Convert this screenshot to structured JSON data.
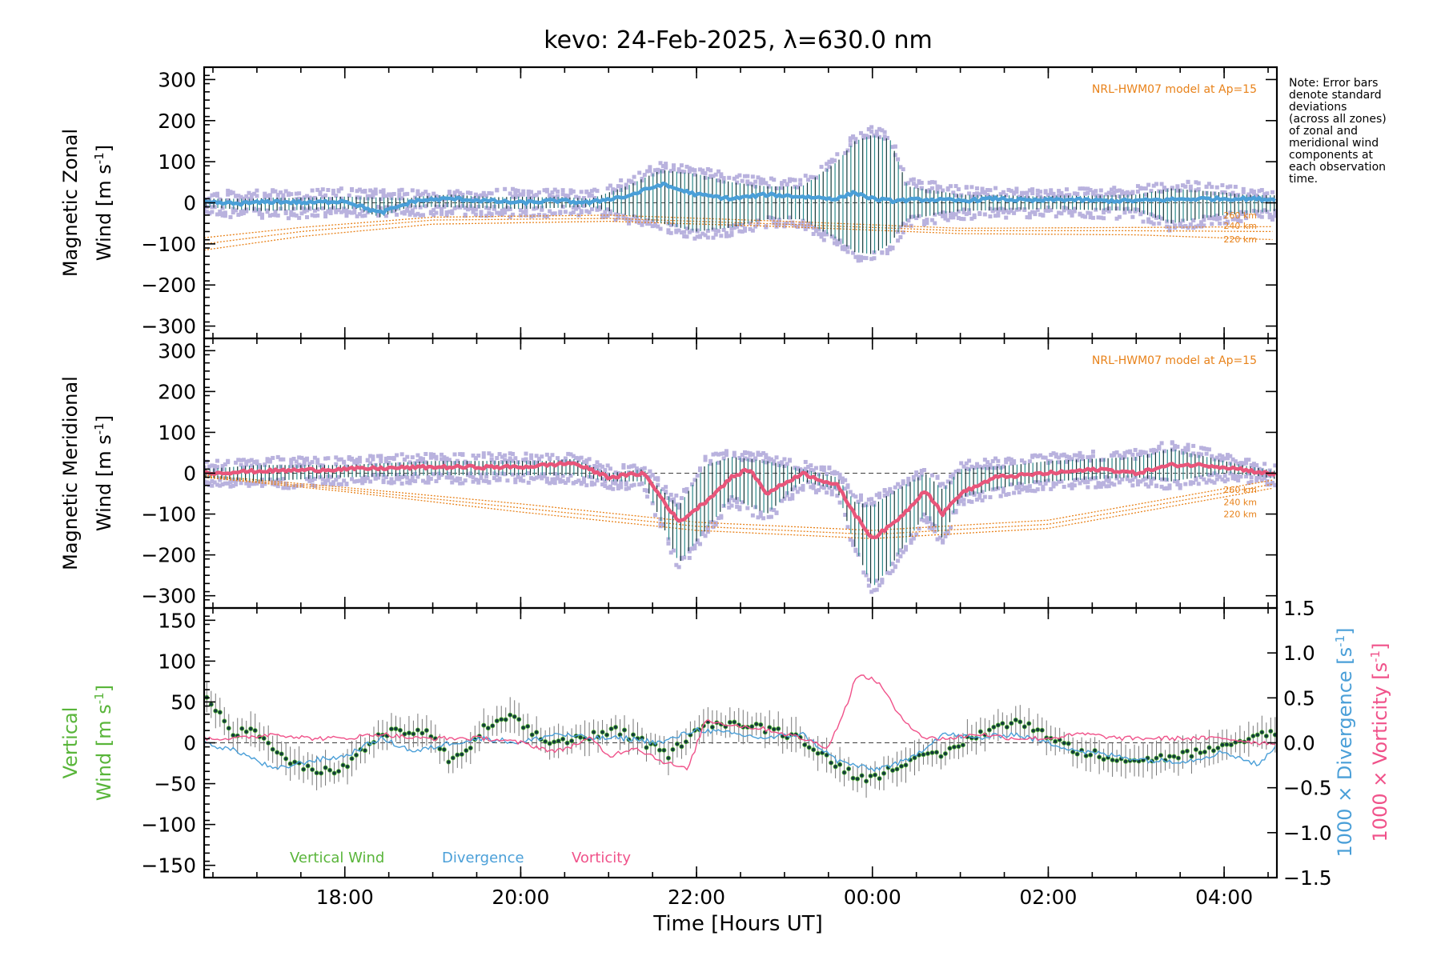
{
  "chart_data": {
    "type": "line",
    "title": "kevo: 24-Feb-2025, λ=630.0 nm",
    "xlabel": "Time [Hours UT]",
    "x_range_hours": [
      16.4,
      28.6
    ],
    "x_ticks": [
      {
        "hour": 18,
        "label": "18:00"
      },
      {
        "hour": 20,
        "label": "20:00"
      },
      {
        "hour": 22,
        "label": "22:00"
      },
      {
        "hour": 24,
        "label": "00:00"
      },
      {
        "hour": 26,
        "label": "02:00"
      },
      {
        "hour": 28,
        "label": "04:00"
      }
    ],
    "note_lines": [
      "Note: Error bars",
      "denote standard",
      "deviations",
      "(across all zones)",
      "of zonal and",
      "meridional wind",
      "components at",
      "each observation",
      "time."
    ],
    "colors": {
      "zonal": "#4a9fd8",
      "meridional": "#e8557a",
      "scatter": "#b9b2de",
      "model": "#e8821a",
      "errbar_dark": "#123b3a",
      "errbar_teal": "#2c8a8a",
      "vertical": "#59b53a",
      "divergence": "#4a9fd8",
      "vorticity": "#f0528a"
    },
    "panels": [
      {
        "id": "zonal",
        "ylabel_line1": "Magnetic Zonal",
        "ylabel_line2_prefix": "Wind [m s",
        "ylabel_sup": "-1",
        "ylabel_suffix": "]",
        "ylim": [
          -330,
          330
        ],
        "yticks": [
          300,
          200,
          100,
          0,
          -100,
          -200,
          -300
        ],
        "ytick_labels": [
          "300",
          "200",
          "100",
          "0",
          "−100",
          "−200",
          "−300"
        ],
        "model_label": "NRL-HWM07 model at Ap=15",
        "model_altitudes": [
          "260 km",
          "240 km",
          "220 km"
        ],
        "model_curves": [
          {
            "alt": "260 km",
            "x": [
              16.4,
              17.5,
              19,
              21,
              23,
              25,
              27,
              28.6
            ],
            "y": [
              -85,
              -60,
              -35,
              -30,
              -45,
              -62,
              -60,
              -58
            ]
          },
          {
            "alt": "240 km",
            "x": [
              16.4,
              17.5,
              19,
              21,
              23,
              25,
              27,
              28.6
            ],
            "y": [
              -100,
              -70,
              -42,
              -38,
              -52,
              -68,
              -68,
              -70
            ]
          },
          {
            "alt": "220 km",
            "x": [
              16.4,
              17.5,
              19,
              21,
              23,
              25,
              27,
              28.6
            ],
            "y": [
              -115,
              -82,
              -52,
              -45,
              -58,
              -75,
              -78,
              -90
            ]
          }
        ],
        "wind": {
          "x": [
            16.4,
            16.8,
            17.2,
            17.6,
            18.0,
            18.4,
            18.8,
            19.2,
            19.6,
            20.0,
            20.4,
            20.8,
            21.0,
            21.2,
            21.4,
            21.6,
            22.0,
            22.4,
            22.8,
            23.2,
            23.6,
            23.8,
            24.0,
            24.2,
            24.6,
            25.0,
            25.4,
            25.8,
            26.2,
            26.6,
            27.0,
            27.4,
            27.8,
            28.2,
            28.6
          ],
          "y": [
            0,
            -2,
            3,
            0,
            5,
            -25,
            5,
            10,
            5,
            0,
            5,
            0,
            10,
            15,
            30,
            45,
            20,
            10,
            20,
            15,
            10,
            25,
            10,
            5,
            8,
            5,
            10,
            5,
            8,
            5,
            5,
            8,
            10,
            10,
            8
          ]
        },
        "spread": {
          "x": [
            16.4,
            17.0,
            18.0,
            19.0,
            20.0,
            20.8,
            21.2,
            21.6,
            22.0,
            22.4,
            22.8,
            23.2,
            23.6,
            23.8,
            24.0,
            24.2,
            24.4,
            25.0,
            26.0,
            27.0,
            27.4,
            28.0,
            28.6
          ],
          "hi": [
            30,
            30,
            35,
            30,
            35,
            30,
            60,
            100,
            90,
            70,
            60,
            60,
            120,
            170,
            185,
            175,
            60,
            40,
            35,
            40,
            55,
            45,
            30
          ],
          "lo": [
            -30,
            -40,
            -35,
            -30,
            -35,
            -30,
            -50,
            -70,
            -90,
            -80,
            -60,
            -60,
            -110,
            -140,
            -145,
            -120,
            -60,
            -40,
            -35,
            -40,
            -70,
            -50,
            -40
          ]
        }
      },
      {
        "id": "meridional",
        "ylabel_line1": "Magnetic Meridional",
        "ylabel_line2_prefix": "Wind [m s",
        "ylabel_sup": "-1",
        "ylabel_suffix": "]",
        "ylim": [
          -330,
          330
        ],
        "yticks": [
          300,
          200,
          100,
          0,
          -100,
          -200,
          -300
        ],
        "ytick_labels": [
          "300",
          "200",
          "100",
          "0",
          "−100",
          "−200",
          "−300"
        ],
        "model_label": "NRL-HWM07 model at Ap=15",
        "model_altitudes": [
          "260 km",
          "240 km",
          "220 km"
        ],
        "model_curves": [
          {
            "alt": "260 km",
            "x": [
              16.4,
              18,
              20,
              22,
              24,
              26,
              28.6
            ],
            "y": [
              -5,
              -35,
              -75,
              -120,
              -140,
              -115,
              -15
            ]
          },
          {
            "alt": "240 km",
            "x": [
              16.4,
              18,
              20,
              22,
              24,
              26,
              28.6
            ],
            "y": [
              -8,
              -40,
              -85,
              -130,
              -150,
              -125,
              -25
            ]
          },
          {
            "alt": "220 km",
            "x": [
              16.4,
              18,
              20,
              22,
              24,
              26,
              28.6
            ],
            "y": [
              -10,
              -45,
              -95,
              -140,
              -160,
              -135,
              -35
            ]
          }
        ],
        "wind": {
          "x": [
            16.4,
            17.0,
            18.0,
            19.0,
            20.0,
            20.6,
            21.0,
            21.4,
            21.8,
            22.1,
            22.4,
            22.6,
            22.8,
            23.2,
            23.6,
            23.8,
            24.0,
            24.2,
            24.4,
            24.6,
            24.8,
            25.0,
            25.4,
            26.0,
            26.6,
            27.0,
            27.4,
            27.8,
            28.2,
            28.6
          ],
          "y": [
            0,
            5,
            10,
            15,
            15,
            25,
            -10,
            0,
            -120,
            -70,
            -10,
            10,
            -50,
            0,
            -30,
            -100,
            -160,
            -130,
            -90,
            -40,
            -100,
            -50,
            -10,
            0,
            10,
            0,
            20,
            20,
            10,
            -5
          ]
        },
        "spread": {
          "x": [
            16.4,
            17.0,
            18.0,
            19.0,
            20.0,
            20.6,
            21.0,
            21.4,
            21.8,
            22.1,
            22.4,
            22.8,
            23.2,
            23.6,
            23.8,
            24.0,
            24.2,
            24.6,
            24.8,
            25.0,
            25.6,
            26.0,
            27.0,
            27.4,
            28.0,
            28.6
          ],
          "hi": [
            30,
            40,
            40,
            50,
            50,
            50,
            20,
            20,
            -60,
            40,
            60,
            50,
            30,
            10,
            -50,
            -60,
            -30,
            20,
            -20,
            30,
            40,
            50,
            60,
            80,
            50,
            20
          ],
          "lo": [
            -30,
            -40,
            -30,
            -25,
            -25,
            -25,
            -40,
            -40,
            -240,
            -160,
            -80,
            -120,
            -40,
            -60,
            -200,
            -300,
            -250,
            -120,
            -180,
            -80,
            -50,
            -40,
            -30,
            -40,
            -20,
            -30
          ]
        }
      },
      {
        "id": "vertical",
        "ylabel_line1": "Vertical",
        "ylabel_line2_prefix": "Wind [m s",
        "ylabel_sup": "-1",
        "ylabel_suffix": "]",
        "ylim": [
          -165,
          165
        ],
        "yticks": [
          150,
          100,
          50,
          0,
          -50,
          -100,
          -150
        ],
        "ytick_labels": [
          "150",
          "100",
          "50",
          "0",
          "−50",
          "−100",
          "−150"
        ],
        "right_ylim": [
          -1.5,
          1.5
        ],
        "right_yticks": [
          1.5,
          1.0,
          0.5,
          0.0,
          -0.5,
          -1.0,
          -1.5
        ],
        "right_ytick_labels": [
          "1.5",
          "1.0",
          "0.5",
          "0.0",
          "−0.5",
          "−1.0",
          "−1.5"
        ],
        "right_label_div_prefix": "1000 × Divergence [s",
        "right_label_vort_prefix": "1000 × Vorticity [s",
        "right_label_sup": "-1",
        "right_label_suffix": "]",
        "legend": [
          "Vertical Wind",
          "Divergence",
          "Vorticity"
        ],
        "vertical_wind": {
          "x": [
            16.4,
            16.55,
            16.7,
            16.9,
            17.1,
            17.3,
            17.5,
            17.8,
            18.0,
            18.2,
            18.4,
            18.7,
            19.0,
            19.2,
            19.4,
            19.6,
            19.9,
            20.1,
            20.3,
            20.6,
            20.9,
            21.1,
            21.4,
            21.7,
            22.0,
            22.3,
            22.6,
            22.9,
            23.2,
            23.5,
            23.8,
            24.0,
            24.2,
            24.5,
            24.8,
            25.1,
            25.4,
            25.7,
            26.0,
            26.3,
            26.6,
            26.9,
            27.2,
            27.5,
            27.8,
            28.1,
            28.4,
            28.6
          ],
          "y": [
            60,
            40,
            10,
            15,
            5,
            -20,
            -30,
            -35,
            -30,
            -10,
            10,
            15,
            10,
            -25,
            -10,
            20,
            30,
            15,
            0,
            5,
            10,
            15,
            0,
            -15,
            20,
            25,
            20,
            15,
            5,
            -20,
            -40,
            -45,
            -30,
            -20,
            -15,
            5,
            20,
            25,
            10,
            -10,
            -15,
            -20,
            -20,
            -15,
            -10,
            -5,
            10,
            15
          ]
        },
        "divergence": {
          "x": [
            16.4,
            16.8,
            17.2,
            17.6,
            18.0,
            18.4,
            18.8,
            19.2,
            19.6,
            20.0,
            20.4,
            20.8,
            21.2,
            21.6,
            22.0,
            22.4,
            22.8,
            23.2,
            23.6,
            24.0,
            24.4,
            24.8,
            25.2,
            25.6,
            26.0,
            26.4,
            26.8,
            27.2,
            27.6,
            28.0,
            28.4,
            28.6
          ],
          "y": [
            0.0,
            -0.1,
            -0.3,
            -0.2,
            -0.15,
            0.05,
            -0.1,
            0.0,
            0.05,
            0.0,
            0.1,
            0.05,
            0.05,
            0.0,
            0.15,
            0.1,
            0.05,
            0.1,
            -0.2,
            -0.3,
            -0.2,
            0.1,
            0.05,
            0.1,
            0.0,
            -0.1,
            -0.15,
            -0.2,
            -0.2,
            -0.1,
            -0.25,
            0.0
          ]
        },
        "vorticity": {
          "x": [
            16.4,
            16.8,
            17.2,
            17.6,
            18.0,
            18.4,
            18.8,
            19.2,
            19.6,
            20.0,
            20.4,
            20.8,
            21.0,
            21.3,
            21.6,
            21.9,
            22.1,
            22.4,
            22.8,
            23.2,
            23.5,
            23.7,
            23.8,
            23.9,
            24.1,
            24.3,
            24.6,
            24.9,
            25.2,
            25.6,
            26.0,
            26.4,
            26.8,
            27.2,
            27.6,
            28.0,
            28.4,
            28.6
          ],
          "y": [
            0.05,
            0.05,
            0.1,
            0.05,
            0.05,
            0.1,
            0.05,
            0.05,
            0.05,
            0.0,
            -0.1,
            0.05,
            -0.15,
            -0.05,
            -0.2,
            -0.3,
            0.25,
            0.2,
            0.15,
            0.05,
            -0.05,
            0.4,
            0.7,
            0.75,
            0.65,
            0.3,
            0.05,
            0.05,
            0.1,
            0.05,
            0.05,
            0.1,
            0.05,
            0.05,
            0.05,
            0.05,
            0.0,
            0.0
          ]
        }
      }
    ]
  }
}
